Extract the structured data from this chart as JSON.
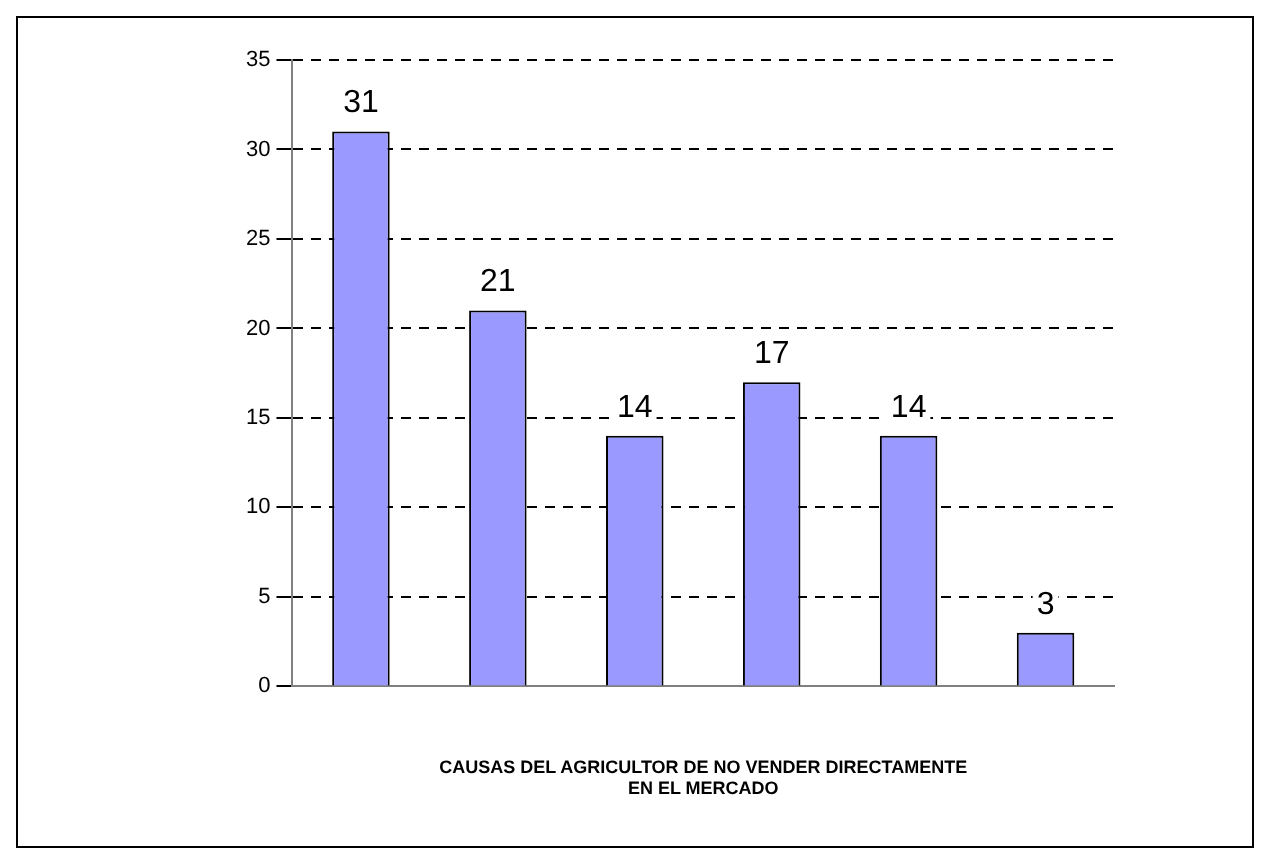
{
  "chart_data": {
    "type": "bar",
    "categories": [
      null,
      null,
      null,
      null,
      null,
      null
    ],
    "values": [
      31,
      21,
      14,
      17,
      14,
      3
    ],
    "color": "#9999ff",
    "ylim": [
      0,
      35
    ],
    "yticks": [
      0,
      5,
      10,
      15,
      20,
      25,
      30,
      35
    ],
    "grid": "y",
    "data_labels": true,
    "xlabel": "CAUSAS DEL AGRICULTOR DE NO VENDER DIRECTAMENTE\nEN EL MERCADO"
  }
}
